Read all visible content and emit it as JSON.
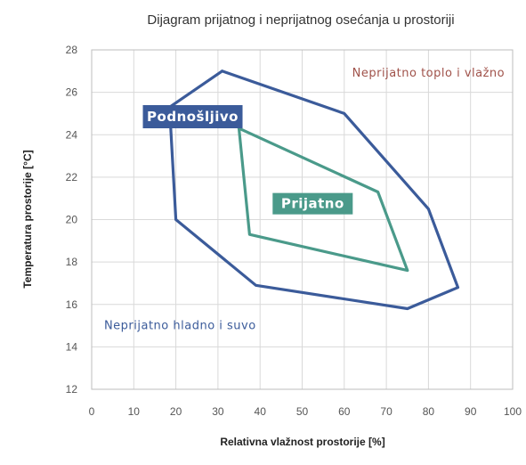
{
  "chart_data": {
    "type": "area",
    "title": "Dijagram prijatnog i neprijatnog osećanja u prostoriji",
    "xlabel": "Relativna vlažnost prostorije  [%]",
    "ylabel": "Temperatura prostorije  [°C]",
    "xlim": [
      0,
      100
    ],
    "ylim": [
      12,
      28
    ],
    "xticks": [
      0,
      10,
      20,
      30,
      40,
      50,
      60,
      70,
      80,
      90,
      100
    ],
    "yticks": [
      12,
      14,
      16,
      18,
      20,
      22,
      24,
      26,
      28
    ],
    "grid": true,
    "series": [
      {
        "name": "Podnošljivo",
        "color": "#3b5b9a",
        "points": [
          [
            31,
            27.0
          ],
          [
            60,
            25.0
          ],
          [
            80,
            20.5
          ],
          [
            87,
            16.8
          ],
          [
            75,
            15.8
          ],
          [
            39,
            16.9
          ],
          [
            20,
            20.0
          ],
          [
            18.5,
            25.3
          ],
          [
            31,
            27.0
          ]
        ]
      },
      {
        "name": "Prijatno",
        "color": "#4a9a8a",
        "points": [
          [
            35,
            24.3
          ],
          [
            68,
            21.3
          ],
          [
            75,
            17.6
          ],
          [
            37.5,
            19.3
          ],
          [
            35,
            24.3
          ]
        ]
      }
    ],
    "annotations": [
      {
        "text": "Neprijatno toplo i vlažno",
        "x": 80,
        "y": 26.9,
        "color": "#a0524a"
      },
      {
        "text": "Neprijatno hladno i suvo",
        "x": 21,
        "y": 15.0,
        "color": "#3b5b9a"
      }
    ]
  }
}
